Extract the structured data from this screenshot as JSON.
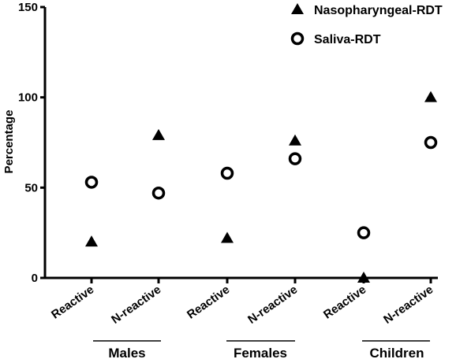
{
  "chart_data": {
    "type": "scatter",
    "title": "",
    "xlabel": "",
    "ylabel": "Percentage",
    "ylim": [
      0,
      150
    ],
    "yticks": [
      "0",
      "50",
      "100",
      "150"
    ],
    "categories": [
      "Reactive",
      "N-reactive",
      "Reactive",
      "N-reactive",
      "Reactive",
      "N-reactive"
    ],
    "groups": [
      "Males",
      "Females",
      "Children"
    ],
    "series": [
      {
        "name": "Nasopharyngeal-RDT",
        "marker": "filled-triangle",
        "color": "#000000",
        "values": [
          20,
          79,
          22,
          76,
          0,
          100
        ]
      },
      {
        "name": "Saliva-RDT",
        "marker": "open-circle",
        "color": "#000000",
        "values": [
          53,
          47,
          58,
          66,
          25,
          75
        ]
      }
    ],
    "grid": false,
    "legend_position": "top-right"
  }
}
